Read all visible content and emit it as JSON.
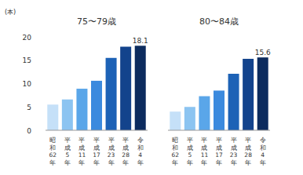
{
  "chart_data": [
    {
      "type": "bar",
      "title": "75〜79歳",
      "y_label": "(本)",
      "categories": [
        "昭和62年",
        "平成5年",
        "平成11年",
        "平成17年",
        "平成23年",
        "平成28年",
        "令和4年"
      ],
      "values": [
        5.5,
        6.6,
        8.9,
        10.6,
        15.5,
        17.9,
        18.1
      ],
      "value_labels": [
        null,
        null,
        null,
        null,
        null,
        null,
        "18.1"
      ],
      "colors": [
        "#c5e0f8",
        "#8cc4f1",
        "#5aa6e9",
        "#3b8ade",
        "#1d62b6",
        "#13438c",
        "#0c2b5e"
      ],
      "ylim": [
        0,
        20
      ],
      "yticks": [
        0,
        5,
        10,
        15,
        20
      ],
      "grid": false,
      "tick_labels": true
    },
    {
      "type": "bar",
      "title": "80〜84歳",
      "categories": [
        "昭和62年",
        "平成5年",
        "平成11年",
        "平成17年",
        "平成23年",
        "平成28年",
        "令和4年"
      ],
      "values": [
        4.0,
        5.0,
        7.3,
        8.5,
        12.1,
        15.3,
        15.6
      ],
      "value_labels": [
        null,
        null,
        null,
        null,
        null,
        null,
        "15.6"
      ],
      "colors": [
        "#c5e0f8",
        "#8cc4f1",
        "#5aa6e9",
        "#3b8ade",
        "#1d62b6",
        "#13438c",
        "#0c2b5e"
      ],
      "ylim": [
        0,
        20
      ],
      "yticks": [
        0,
        5,
        10,
        15,
        20
      ],
      "grid": false,
      "tick_labels": "x"
    }
  ]
}
